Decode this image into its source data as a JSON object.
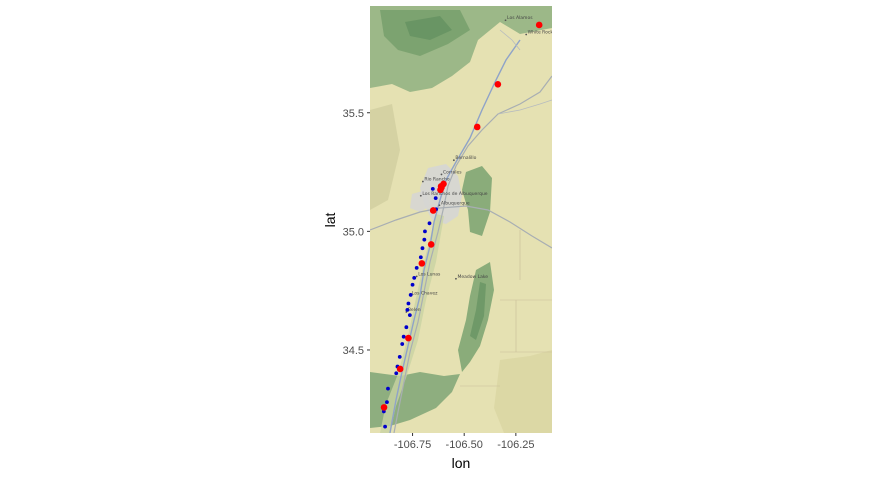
{
  "chart_data": {
    "type": "scatter",
    "title": "",
    "xlabel": "lon",
    "ylabel": "lat",
    "xlim": [
      -106.956,
      -106.075
    ],
    "ylim": [
      34.15,
      35.95
    ],
    "x_ticks": [
      -106.75,
      -106.5,
      -106.25
    ],
    "x_tick_labels": [
      "-106.75",
      "-106.50",
      "-106.25"
    ],
    "y_ticks": [
      34.5,
      35.0,
      35.5
    ],
    "y_tick_labels": [
      "34.5",
      "35.0",
      "35.5"
    ],
    "grid": false,
    "legend": "none",
    "background": "terrain basemap tiles",
    "series": [
      {
        "color": "#0000cc",
        "marker": "small-dot",
        "points": [
          [
            -106.652,
            35.179
          ],
          [
            -106.638,
            35.14
          ],
          [
            -106.636,
            35.093
          ],
          [
            -106.668,
            35.034
          ],
          [
            -106.69,
            35.0
          ],
          [
            -106.693,
            34.965
          ],
          [
            -106.702,
            34.929
          ],
          [
            -106.71,
            34.891
          ],
          [
            -106.73,
            34.846
          ],
          [
            -106.742,
            34.804
          ],
          [
            -106.75,
            34.775
          ],
          [
            -106.759,
            34.732
          ],
          [
            -106.77,
            34.696
          ],
          [
            -106.775,
            34.669
          ],
          [
            -106.763,
            34.647
          ],
          [
            -106.78,
            34.596
          ],
          [
            -106.793,
            34.556
          ],
          [
            -106.8,
            34.525
          ],
          [
            -106.812,
            34.471
          ],
          [
            -106.823,
            34.43
          ],
          [
            -106.829,
            34.402
          ],
          [
            -106.869,
            34.337
          ],
          [
            -106.874,
            34.28
          ],
          [
            -106.889,
            34.241
          ],
          [
            -106.883,
            34.177
          ]
        ]
      },
      {
        "color": "#ff0000",
        "marker": "large-dot",
        "points": [
          [
            -106.137,
            35.87
          ],
          [
            -106.337,
            35.62
          ],
          [
            -106.437,
            35.44
          ],
          [
            -106.6,
            35.2
          ],
          [
            -106.61,
            35.185
          ],
          [
            -106.612,
            35.19
          ],
          [
            -106.615,
            35.175
          ],
          [
            -106.65,
            35.088
          ],
          [
            -106.66,
            34.945
          ],
          [
            -106.705,
            34.865
          ],
          [
            -106.77,
            34.55
          ],
          [
            -106.81,
            34.42
          ],
          [
            -106.888,
            34.258
          ]
        ]
      }
    ]
  },
  "map": {
    "colors": {
      "base": "#e5e1b2",
      "green": "#84a979",
      "dark_green": "#5e8c5c",
      "urban": "#d6d6d3",
      "road": "#a8aeb3",
      "river": "#8fa3c8"
    },
    "places": [
      {
        "name": "Los Alamos",
        "lon": -106.3,
        "lat": 35.89
      },
      {
        "name": "White Rock",
        "lon": -106.2,
        "lat": 35.83
      },
      {
        "name": "Bernalillo",
        "lon": -106.55,
        "lat": 35.3
      },
      {
        "name": "Corrales",
        "lon": -106.61,
        "lat": 35.24
      },
      {
        "name": "Rio Rancho",
        "lon": -106.7,
        "lat": 35.21
      },
      {
        "name": "Los Ranchos de Albuquerque",
        "lon": -106.71,
        "lat": 35.15
      },
      {
        "name": "Albuquerque",
        "lon": -106.62,
        "lat": 35.11
      },
      {
        "name": "Meadow Lake",
        "lon": -106.54,
        "lat": 34.8
      },
      {
        "name": "Los Lunas",
        "lon": -106.73,
        "lat": 34.81
      },
      {
        "name": "Los Chavez",
        "lon": -106.76,
        "lat": 34.73
      },
      {
        "name": "Belen",
        "lon": -106.78,
        "lat": 34.66
      }
    ]
  }
}
